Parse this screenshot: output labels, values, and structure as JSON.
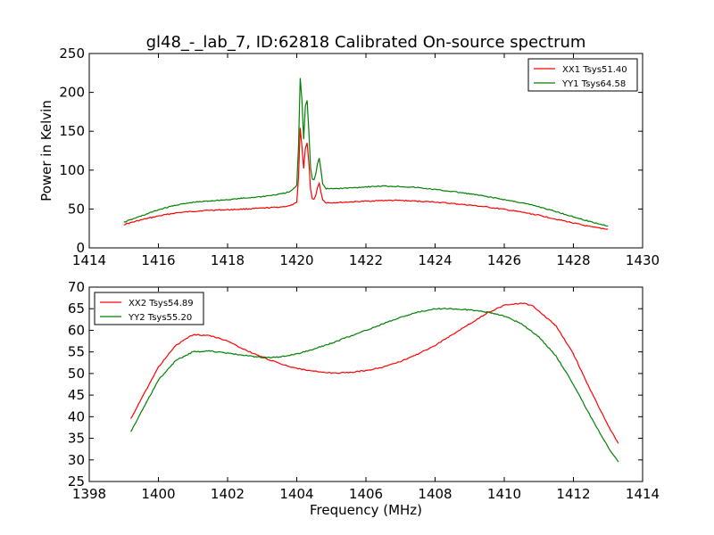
{
  "figure": {
    "title": "gl48_-_lab_7, ID:62818 Calibrated On-source spectrum",
    "xlabel": "Frequency (MHz)"
  },
  "chart_data": [
    {
      "type": "line",
      "title": "",
      "xlabel": "",
      "ylabel": "Power in Kelvin",
      "xlim": [
        1414,
        1430
      ],
      "ylim": [
        0,
        250
      ],
      "xticks": [
        1414,
        1416,
        1418,
        1420,
        1422,
        1424,
        1426,
        1428,
        1430
      ],
      "yticks": [
        0,
        50,
        100,
        150,
        200,
        250
      ],
      "grid": false,
      "legend_position": "top-right",
      "series": [
        {
          "name": "XX1 Tsys51.40",
          "color": "#ff0000",
          "x": [
            1415.0,
            1415.5,
            1416.0,
            1416.5,
            1417.0,
            1417.5,
            1418.0,
            1418.5,
            1419.0,
            1419.5,
            1419.8,
            1420.0,
            1420.05,
            1420.1,
            1420.15,
            1420.2,
            1420.25,
            1420.3,
            1420.35,
            1420.4,
            1420.45,
            1420.5,
            1420.55,
            1420.6,
            1420.65,
            1420.7,
            1420.75,
            1420.85,
            1421.0,
            1421.5,
            1422.0,
            1422.5,
            1423.0,
            1423.5,
            1424.0,
            1424.5,
            1425.0,
            1425.5,
            1426.0,
            1426.5,
            1427.0,
            1427.5,
            1428.0,
            1428.5,
            1429.0
          ],
          "y": [
            30,
            36,
            41,
            45,
            47,
            48.5,
            49,
            50,
            51,
            52.5,
            54,
            58,
            90,
            155,
            130,
            102,
            128,
            135,
            110,
            75,
            63,
            62,
            68,
            78,
            83,
            72,
            62,
            58,
            58,
            59,
            60,
            61,
            61,
            60,
            59,
            57,
            55,
            52.5,
            49.5,
            46,
            42,
            37,
            32,
            27,
            24
          ]
        },
        {
          "name": "YY1 Tsys64.58",
          "color": "#008000",
          "x": [
            1415.0,
            1415.5,
            1416.0,
            1416.5,
            1417.0,
            1417.5,
            1418.0,
            1418.5,
            1419.0,
            1419.5,
            1419.8,
            1420.0,
            1420.05,
            1420.1,
            1420.15,
            1420.2,
            1420.25,
            1420.3,
            1420.35,
            1420.4,
            1420.45,
            1420.5,
            1420.55,
            1420.6,
            1420.65,
            1420.7,
            1420.75,
            1420.85,
            1421.0,
            1421.5,
            1422.0,
            1422.5,
            1423.0,
            1423.5,
            1424.0,
            1424.5,
            1425.0,
            1425.5,
            1426.0,
            1426.5,
            1427.0,
            1427.5,
            1428.0,
            1428.5,
            1429.0
          ],
          "y": [
            33,
            41,
            49,
            55,
            58.5,
            60.5,
            62,
            64,
            66,
            69,
            72,
            80,
            130,
            218,
            190,
            140,
            183,
            190,
            150,
            103,
            89,
            88,
            95,
            108,
            116,
            100,
            82,
            76,
            76,
            77,
            78.5,
            79.5,
            79,
            77.5,
            75,
            72.5,
            69.5,
            66,
            62,
            58,
            53,
            46.5,
            40,
            33.5,
            28
          ]
        }
      ]
    },
    {
      "type": "line",
      "title": "",
      "xlabel": "Frequency (MHz)",
      "ylabel": "",
      "xlim": [
        1398,
        1414
      ],
      "ylim": [
        25,
        70
      ],
      "xticks": [
        1398,
        1400,
        1402,
        1404,
        1406,
        1408,
        1410,
        1412,
        1414
      ],
      "yticks": [
        25,
        30,
        35,
        40,
        45,
        50,
        55,
        60,
        65,
        70
      ],
      "grid": false,
      "legend_position": "top-left",
      "series": [
        {
          "name": "XX2 Tsys54.89",
          "color": "#ff0000",
          "x": [
            1399.2,
            1399.5,
            1400.0,
            1400.5,
            1401.0,
            1401.5,
            1402.0,
            1402.5,
            1403.0,
            1403.5,
            1404.0,
            1404.5,
            1405.0,
            1405.5,
            1406.0,
            1406.5,
            1407.0,
            1407.5,
            1408.0,
            1408.5,
            1409.0,
            1409.5,
            1410.0,
            1410.5,
            1410.8,
            1411.0,
            1411.5,
            1412.0,
            1412.5,
            1413.0,
            1413.3
          ],
          "y": [
            39.5,
            44,
            51.5,
            56.5,
            59,
            58.8,
            57.5,
            55.5,
            53.8,
            52.3,
            51.2,
            50.5,
            50.1,
            50.2,
            50.7,
            51.5,
            52.8,
            54.5,
            56.5,
            59,
            61.5,
            64,
            65.8,
            66.3,
            65.8,
            64.5,
            61,
            54.5,
            46,
            38,
            33.8
          ]
        },
        {
          "name": "YY2 Tsys55.20",
          "color": "#008000",
          "x": [
            1399.2,
            1399.5,
            1400.0,
            1400.5,
            1401.0,
            1401.5,
            1402.0,
            1402.5,
            1403.0,
            1403.5,
            1404.0,
            1404.5,
            1405.0,
            1405.5,
            1406.0,
            1406.5,
            1407.0,
            1407.5,
            1408.0,
            1408.5,
            1409.0,
            1409.5,
            1410.0,
            1410.5,
            1411.0,
            1411.5,
            1412.0,
            1412.5,
            1413.0,
            1413.3
          ],
          "y": [
            36.5,
            41,
            48.5,
            53,
            55,
            55.2,
            54.7,
            54.2,
            53.7,
            53.8,
            54.5,
            55.7,
            57,
            58.5,
            60,
            61.5,
            63,
            64.2,
            65,
            65,
            64.7,
            64.2,
            63.3,
            61.5,
            58.5,
            54,
            47.5,
            40,
            33,
            29.5
          ]
        }
      ]
    }
  ]
}
